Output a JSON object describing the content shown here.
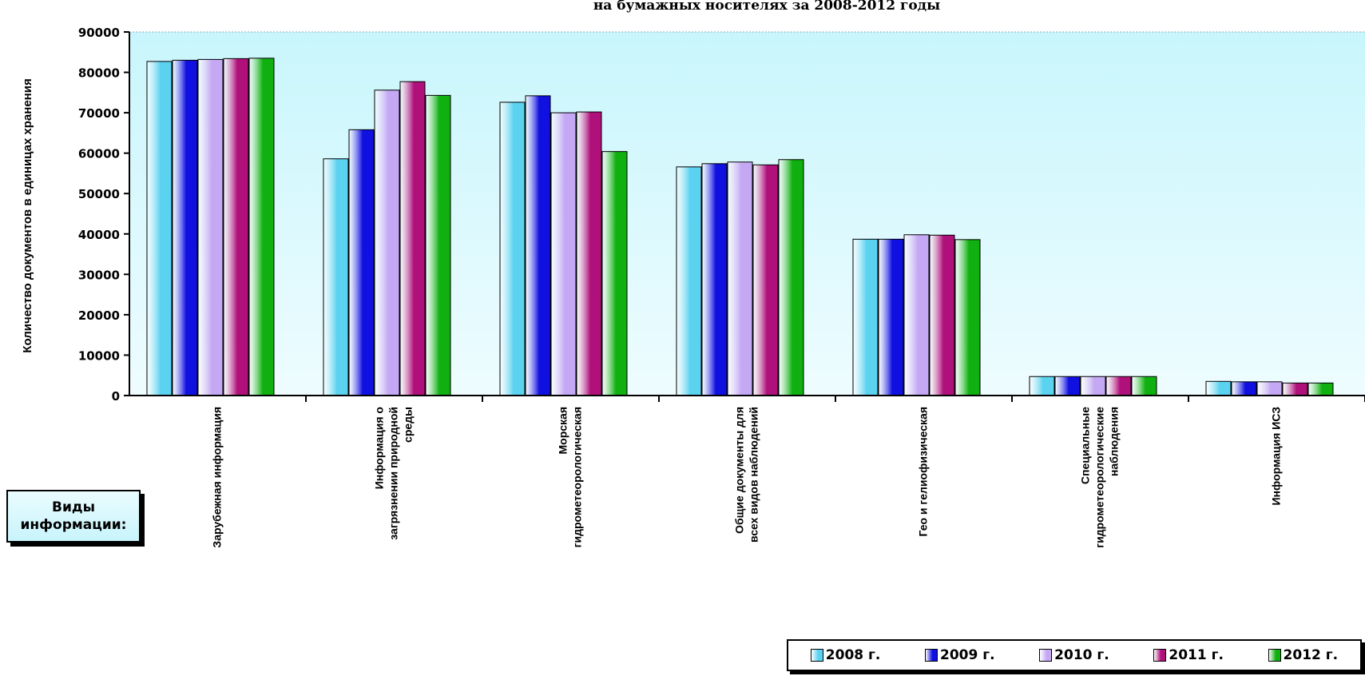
{
  "chart_data": {
    "type": "bar",
    "title": "на бумажных носителях за 2008-2012 годы",
    "ylabel": "Количество документов в единицах хранения",
    "ylim": [
      0,
      90000
    ],
    "yticks": [
      "0",
      "10000",
      "20000",
      "30000",
      "40000",
      "50000",
      "60000",
      "70000",
      "80000",
      "90000"
    ],
    "categories": [
      [
        "Зарубежная информация"
      ],
      [
        "Информация о",
        "загрязнении природной",
        "среды"
      ],
      [
        "Морская",
        "гидрометеорологическая"
      ],
      [
        "Общие документы для",
        "всех видов наблюдений"
      ],
      [
        "Гео и гелиофизическая"
      ],
      [
        "Специальные",
        "гидрометеорологические",
        "наблюдения"
      ],
      [
        "Информация ИСЗ"
      ]
    ],
    "series": [
      {
        "name": "2008 г.",
        "color": "#5ad2f0",
        "values": [
          82700,
          58600,
          72600,
          56600,
          38700,
          4700,
          3500
        ]
      },
      {
        "name": "2009 г.",
        "color": "#1010e0",
        "values": [
          83000,
          65800,
          74200,
          57400,
          38700,
          4700,
          3400
        ]
      },
      {
        "name": "2010 г.",
        "color": "#c4a8f4",
        "values": [
          83200,
          75600,
          70000,
          57800,
          39800,
          4700,
          3400
        ]
      },
      {
        "name": "2011 г.",
        "color": "#b0107a",
        "values": [
          83400,
          77700,
          70200,
          57100,
          39700,
          4700,
          3100
        ]
      },
      {
        "name": "2012 г.",
        "color": "#10b010",
        "values": [
          83500,
          74300,
          60400,
          58400,
          38600,
          4700,
          3100
        ]
      }
    ],
    "grid": false,
    "legend": "bottom-right"
  },
  "category_box": {
    "line1": "Виды",
    "line2": "информации:"
  }
}
